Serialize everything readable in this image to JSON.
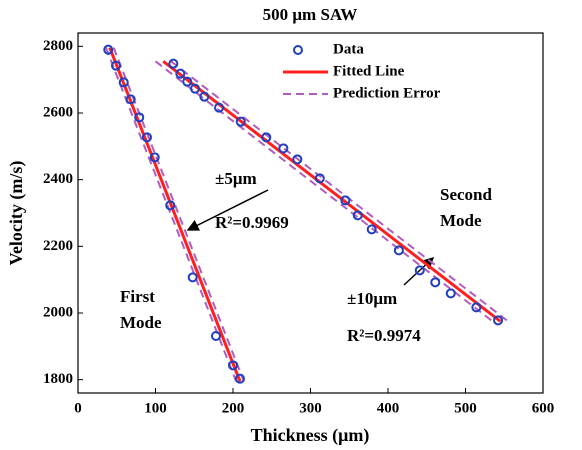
{
  "chart_data": {
    "type": "scatter",
    "title": "500 μm SAW",
    "x_label": "Thickness (μm)",
    "y_label": "Velocity (m/s)",
    "xlim": [
      0,
      600
    ],
    "ylim": [
      1760,
      2840
    ],
    "xticks": [
      0,
      100,
      200,
      300,
      400,
      500,
      600
    ],
    "yticks": [
      1800,
      2000,
      2200,
      2400,
      2600,
      2800
    ],
    "legend": "upper right",
    "series": [
      {
        "name": "Data",
        "color": "#1f3fbf",
        "x": [
          39,
          49,
          59,
          68,
          79,
          89,
          99,
          119,
          148,
          178,
          200,
          209,
          123,
          132,
          141,
          151,
          163,
          182,
          210,
          243,
          265,
          283,
          312,
          345,
          361,
          379,
          414,
          441,
          461,
          481,
          514,
          542
        ],
        "y": [
          2790,
          2742,
          2692,
          2641,
          2587,
          2527,
          2467,
          2323,
          2107,
          1931,
          1843,
          1803,
          2748,
          2718,
          2694,
          2673,
          2649,
          2616,
          2574,
          2527,
          2494,
          2461,
          2404,
          2338,
          2293,
          2251,
          2188,
          2128,
          2092,
          2059,
          2017,
          1978
        ]
      },
      {
        "name": "Fitted Line",
        "color": "#ff1f1f",
        "lines": [
          {
            "x": [
              41,
              209
            ],
            "y": [
              2796,
              1795
            ]
          },
          {
            "x": [
              110,
              545
            ],
            "y": [
              2755,
              1975
            ]
          }
        ]
      },
      {
        "name": "Prediction Error",
        "color": "#b05cc0",
        "lines": [
          {
            "x": [
              46,
              214
            ],
            "y": [
              2796,
              1795
            ]
          },
          {
            "x": [
              36,
              204
            ],
            "y": [
              2796,
              1795
            ]
          },
          {
            "x": [
              120,
              555
            ],
            "y": [
              2755,
              1975
            ]
          },
          {
            "x": [
              100,
              535
            ],
            "y": [
              2755,
              1975
            ]
          }
        ]
      }
    ],
    "annotations": [
      {
        "lines": [
          "±5μm"
        ]
      },
      {
        "lines": [
          "R²=0.9969"
        ]
      },
      {
        "lines": [
          "First",
          "Mode"
        ]
      },
      {
        "lines": [
          "Second",
          "Mode"
        ]
      },
      {
        "lines": [
          "±10μm"
        ]
      },
      {
        "lines": [
          "R²=0.9974"
        ]
      }
    ]
  }
}
